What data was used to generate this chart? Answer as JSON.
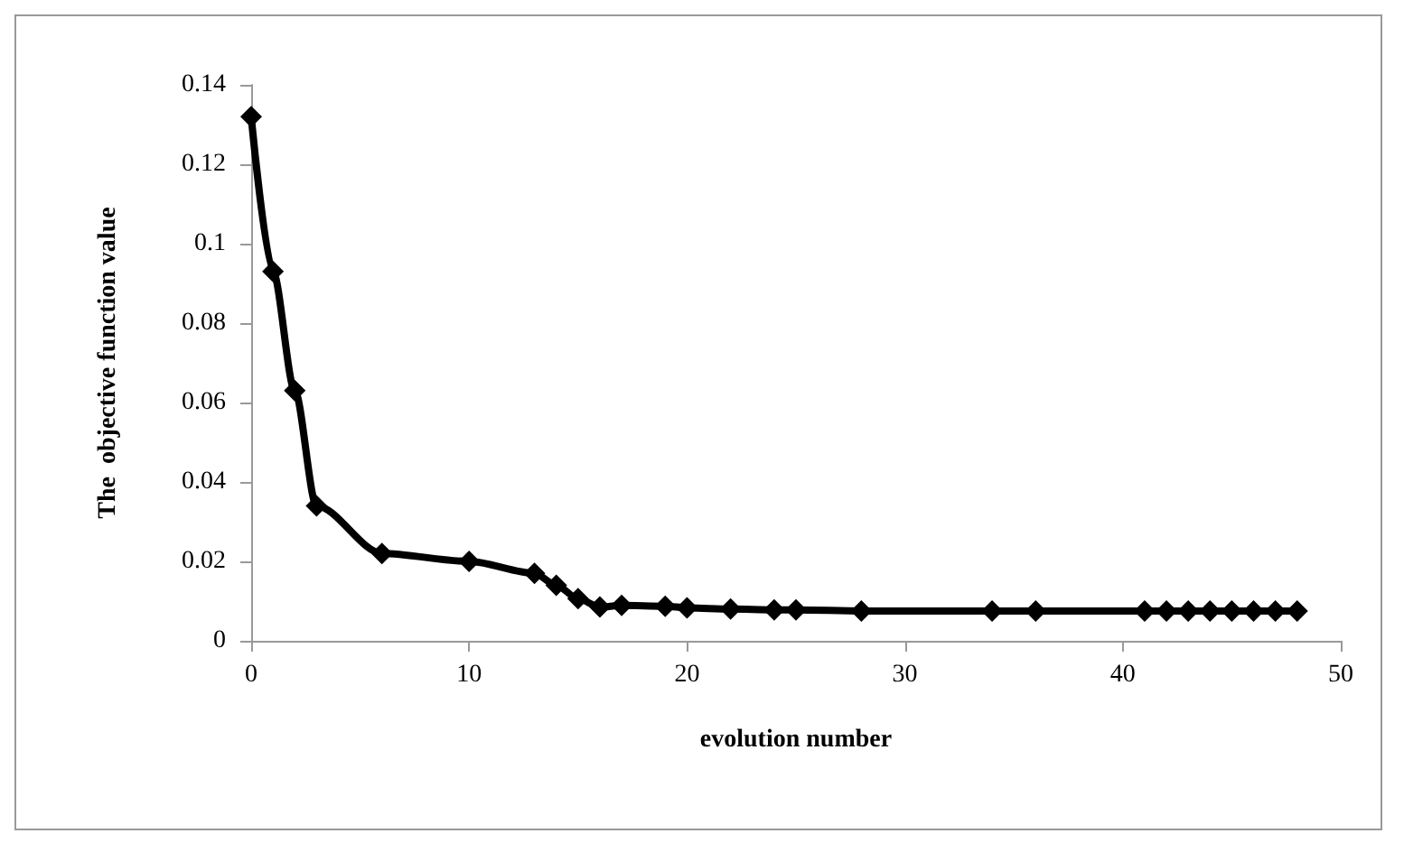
{
  "chart_data": {
    "type": "line",
    "xlabel": "evolution number",
    "ylabel": "The  objective function value",
    "x": [
      0,
      1,
      2,
      3,
      6,
      10,
      13,
      14,
      15,
      16,
      17,
      19,
      20,
      22,
      24,
      25,
      28,
      34,
      36,
      41,
      42,
      43,
      44,
      45,
      46,
      47,
      48
    ],
    "series": [
      {
        "color": "#000000",
        "values": [
          0.132,
          0.093,
          0.063,
          0.034,
          0.022,
          0.02,
          0.017,
          0.014,
          0.0106,
          0.0085,
          0.0089,
          0.0087,
          0.0083,
          0.008,
          0.0078,
          0.0078,
          0.0075,
          0.0075,
          0.0075,
          0.0075,
          0.0075,
          0.0075,
          0.0075,
          0.0075,
          0.0075,
          0.0075,
          0.0075
        ]
      }
    ],
    "xlim": [
      0,
      50
    ],
    "xticks": [
      0,
      10,
      20,
      30,
      40,
      50
    ],
    "ylim": [
      0,
      0.14
    ],
    "yticks": [
      0,
      0.02,
      0.04,
      0.06,
      0.08,
      0.1,
      0.12,
      0.14
    ],
    "grid": false,
    "marker": "diamond",
    "line_style": "solid"
  }
}
